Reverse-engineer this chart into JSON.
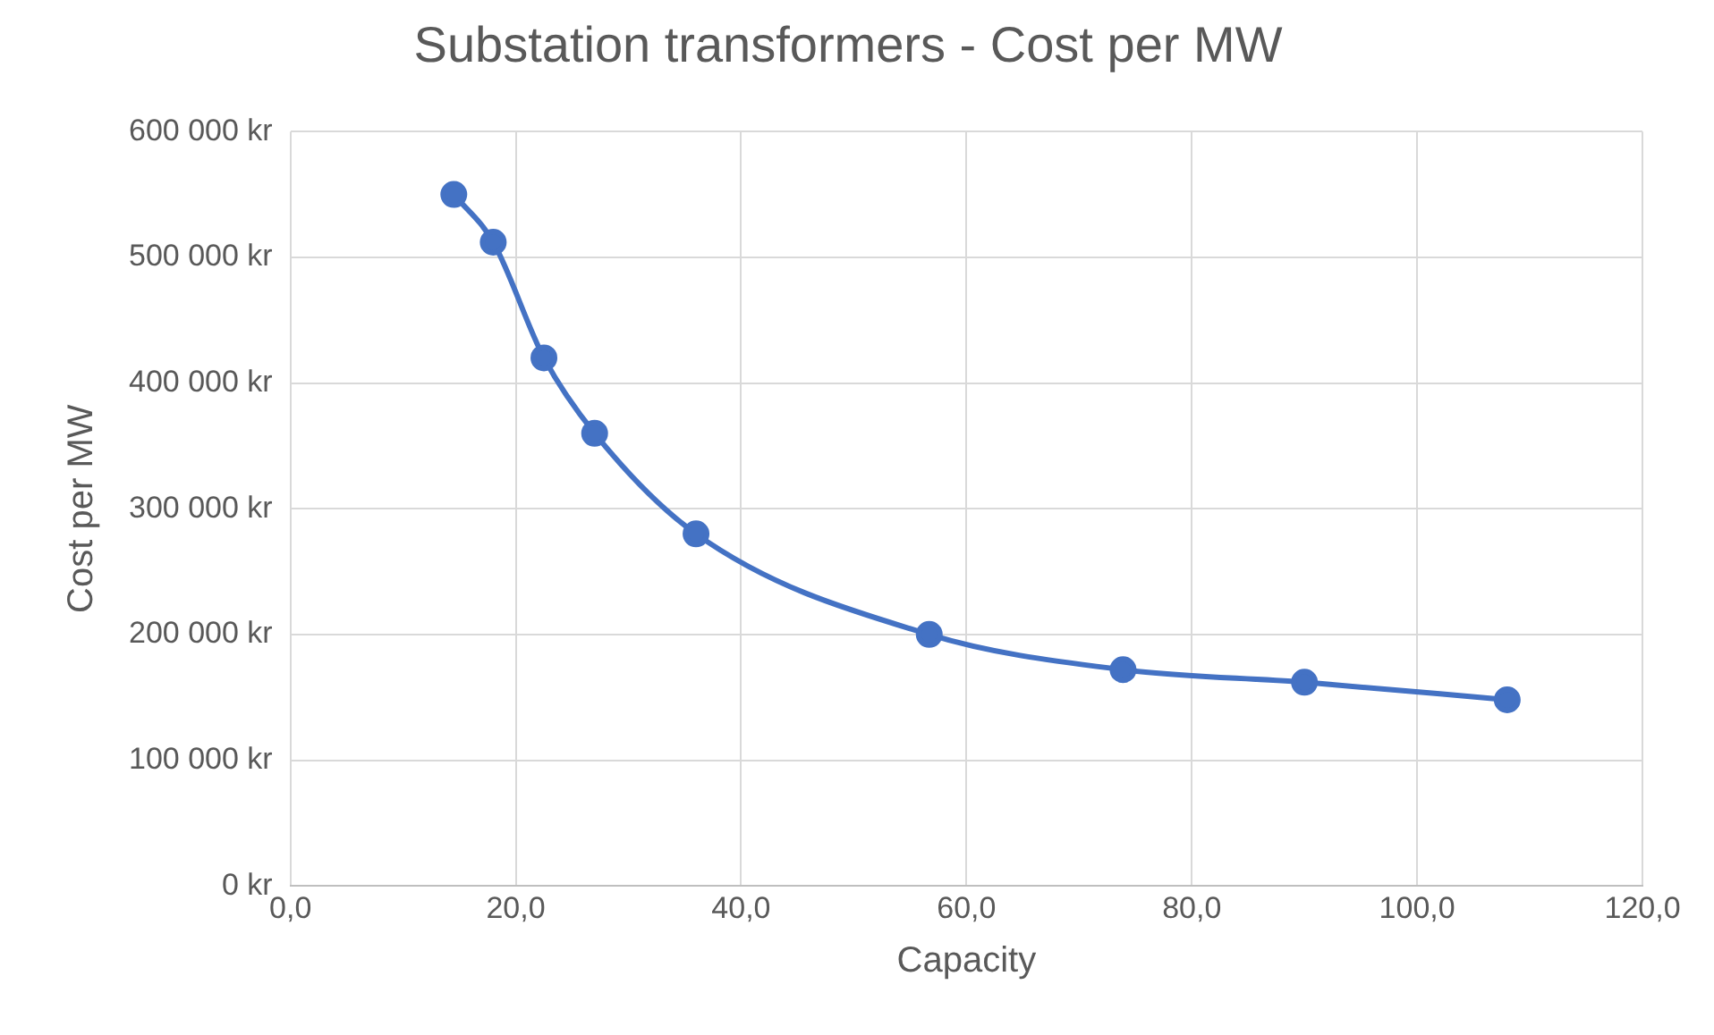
{
  "chart_data": {
    "type": "line",
    "title": "Substation transformers - Cost per MW",
    "xlabel": "Capacity",
    "ylabel": "Cost per MW",
    "x": [
      14.5,
      18,
      22.5,
      27,
      36,
      56.7,
      73.9,
      90,
      108
    ],
    "series": [
      {
        "color": "#4472c4",
        "values": [
          550000,
          512000,
          420000,
          360000,
          280000,
          200000,
          172000,
          162000,
          148000
        ]
      }
    ],
    "xlim": [
      0,
      120
    ],
    "xticks": [
      {
        "value": 0,
        "label": "0,0"
      },
      {
        "value": 20,
        "label": "20,0"
      },
      {
        "value": 40,
        "label": "40,0"
      },
      {
        "value": 60,
        "label": "60,0"
      },
      {
        "value": 80,
        "label": "80,0"
      },
      {
        "value": 100,
        "label": "100,0"
      },
      {
        "value": 120,
        "label": "120,0"
      }
    ],
    "ylim": [
      0,
      600000
    ],
    "yticks": [
      {
        "value": 0,
        "label": "0 kr"
      },
      {
        "value": 100000,
        "label": "100 000 kr"
      },
      {
        "value": 200000,
        "label": "200 000 kr"
      },
      {
        "value": 300000,
        "label": "300 000 kr"
      },
      {
        "value": 400000,
        "label": "400 000 kr"
      },
      {
        "value": 500000,
        "label": "500 000 kr"
      },
      {
        "value": 600000,
        "label": "600 000 kr"
      }
    ],
    "grid": true,
    "marker": "circle",
    "line_style": "solid"
  }
}
